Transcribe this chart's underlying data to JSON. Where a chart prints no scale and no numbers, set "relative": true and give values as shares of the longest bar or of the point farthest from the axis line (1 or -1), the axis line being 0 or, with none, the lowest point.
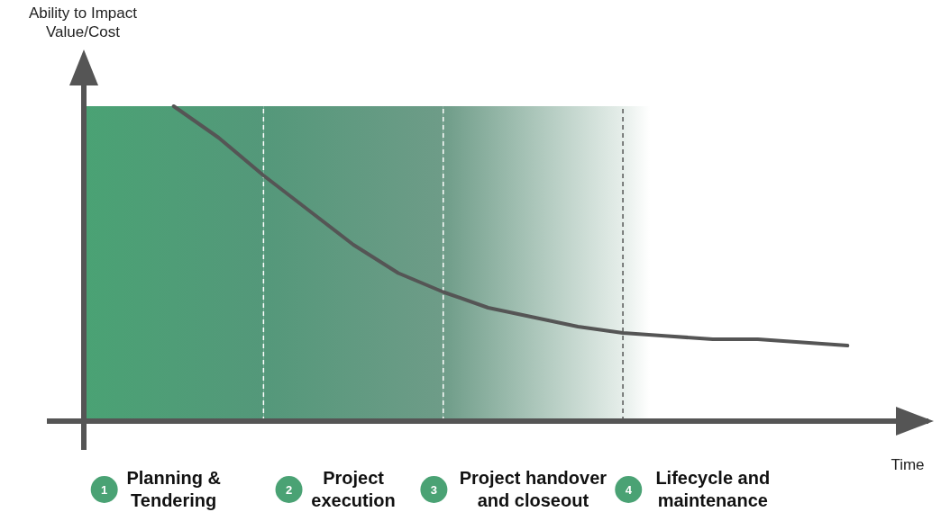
{
  "chart_data": {
    "type": "line",
    "relative": true,
    "xlabel": "Time",
    "ylabel": "Ability to Impact Value/Cost",
    "categories": [
      null,
      null,
      "Planning & Tendering",
      null,
      null,
      null,
      "Project execution",
      null,
      null,
      null,
      "Project handover and closeout",
      null,
      null,
      null,
      "Lifecycle and maintenance",
      null,
      null,
      null,
      null
    ],
    "tick_labels": "x",
    "series": [
      {
        "color": "#555555",
        "values": [
          null,
          null,
          1,
          0.9,
          0.78,
          0.67,
          0.56,
          0.47,
          0.41,
          0.36,
          0.33,
          0.3,
          0.28,
          0.27,
          0.26,
          0.26,
          0.25,
          0.24,
          null
        ]
      }
    ],
    "annotations": [
      "1",
      "2",
      "3",
      "4"
    ],
    "marker": "none",
    "line_style": "solid"
  }
}
